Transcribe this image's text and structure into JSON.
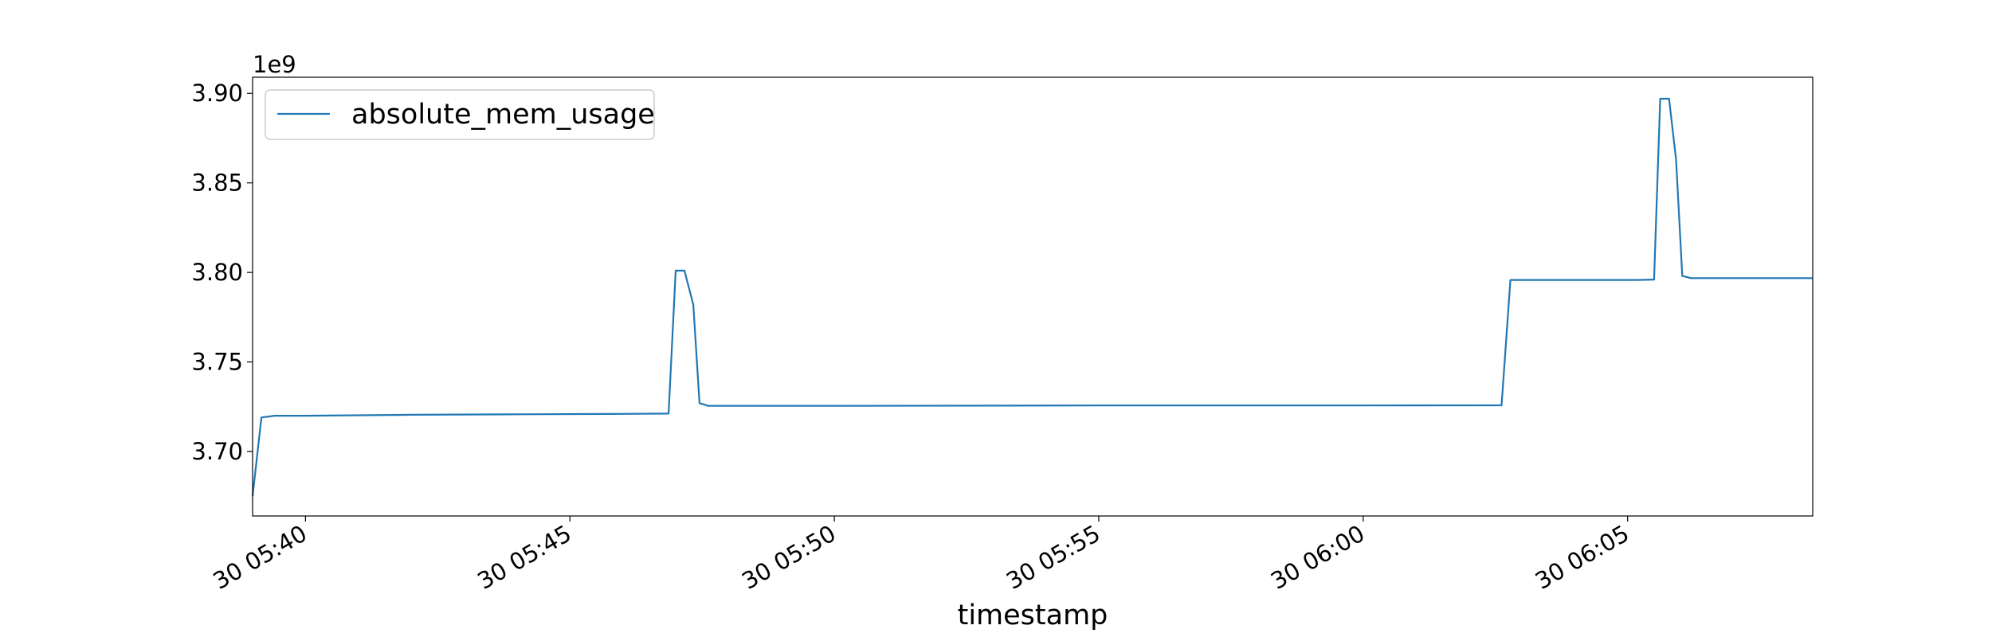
{
  "chart_data": {
    "type": "line",
    "title": "",
    "xlabel": "timestamp",
    "ylabel": "",
    "y_offset_label": "1e9",
    "x_tick_labels": [
      "30 05:40",
      "30 05:45",
      "30 05:50",
      "30 05:55",
      "30 06:00",
      "30 06:05"
    ],
    "x_tick_values": [
      "05:40",
      "05:45",
      "05:50",
      "05:55",
      "06:00",
      "06:05"
    ],
    "xlim": [
      "05:39:00",
      "06:08:30"
    ],
    "y_tick_labels": [
      "3.70",
      "3.75",
      "3.80",
      "3.85",
      "3.90"
    ],
    "y_tick_values": [
      3.7,
      3.75,
      3.8,
      3.85,
      3.9
    ],
    "ylim": [
      3.664,
      3.909
    ],
    "y_unit_multiplier": 1000000000.0,
    "grid": false,
    "legend_position": "top-left",
    "series": [
      {
        "name": "absolute_mem_usage",
        "color": "#1f77b4",
        "points": [
          [
            "05:39:00",
            3.675
          ],
          [
            "05:39:10",
            3.719
          ],
          [
            "05:39:25",
            3.72
          ],
          [
            "05:39:40",
            3.72
          ],
          [
            "05:40:00",
            3.72
          ],
          [
            "05:42:00",
            3.7205
          ],
          [
            "05:44:00",
            3.7208
          ],
          [
            "05:46:00",
            3.721
          ],
          [
            "05:46:52",
            3.7212
          ],
          [
            "05:47:00",
            3.801
          ],
          [
            "05:47:10",
            3.801
          ],
          [
            "05:47:20",
            3.782
          ],
          [
            "05:47:27",
            3.727
          ],
          [
            "05:47:37",
            3.7255
          ],
          [
            "05:50:00",
            3.7255
          ],
          [
            "05:55:00",
            3.7257
          ],
          [
            "06:00:00",
            3.7257
          ],
          [
            "06:02:37",
            3.7258
          ],
          [
            "06:02:47",
            3.7958
          ],
          [
            "06:05:10",
            3.7958
          ],
          [
            "06:05:30",
            3.796
          ],
          [
            "06:05:37",
            3.897
          ],
          [
            "06:05:47",
            3.897
          ],
          [
            "06:05:55",
            3.863
          ],
          [
            "06:06:02",
            3.798
          ],
          [
            "06:06:12",
            3.7968
          ],
          [
            "06:08:30",
            3.7968
          ]
        ]
      }
    ]
  }
}
